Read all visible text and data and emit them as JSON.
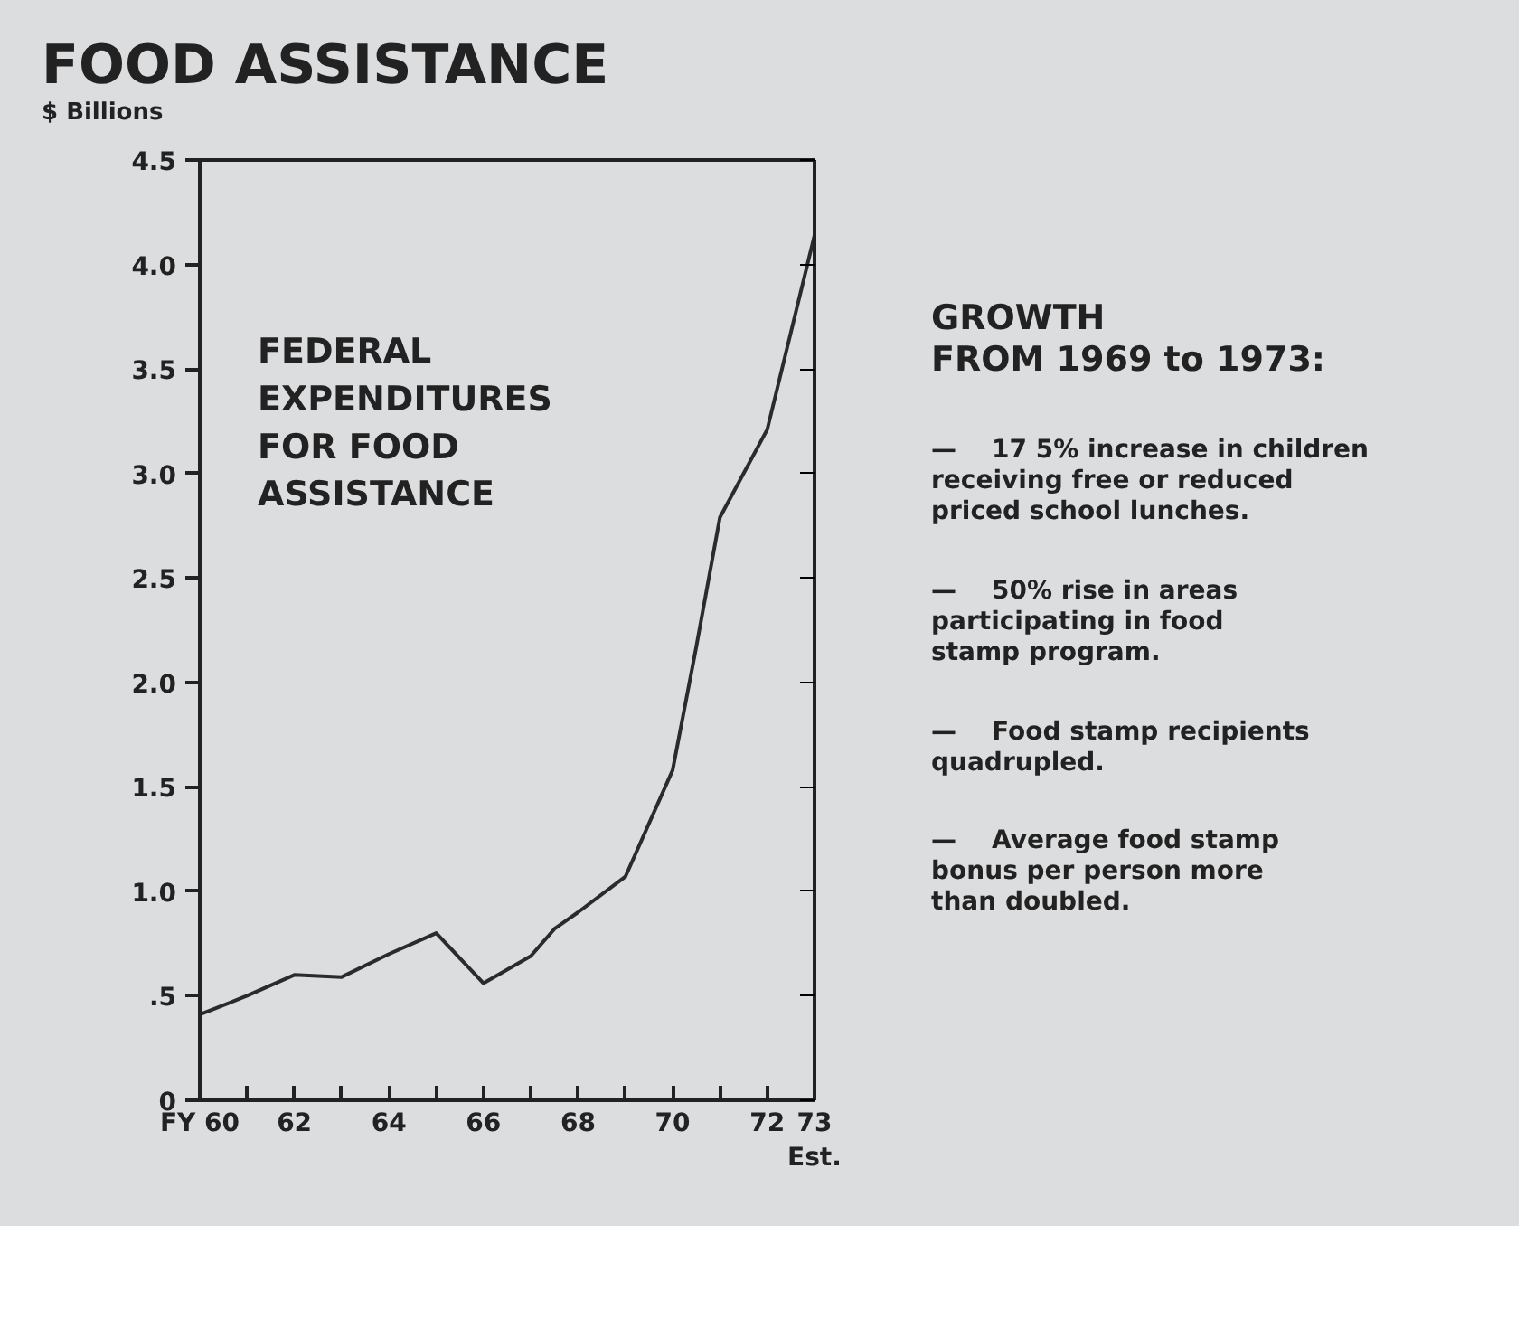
{
  "chart_data": {
    "type": "line",
    "title": "FOOD ASSISTANCE",
    "ylabel": "$ Billions",
    "x": [
      60,
      61,
      62,
      63,
      64,
      65,
      66,
      67,
      67.5,
      68,
      69,
      70,
      70.5,
      71,
      72,
      73
    ],
    "series": [
      {
        "color": "#2b2b2b",
        "values": [
          0.41,
          0.5,
          0.6,
          0.59,
          0.7,
          0.8,
          0.56,
          0.69,
          0.82,
          0.9,
          1.07,
          1.58,
          2.17,
          2.79,
          3.21,
          4.14
        ]
      }
    ],
    "xlim": [
      60,
      73
    ],
    "ylim": [
      0,
      4.5
    ],
    "xticks": [
      {
        "value": 60,
        "label": "FY 60"
      },
      {
        "value": 61,
        "label": null
      },
      62,
      {
        "value": 63,
        "label": null
      },
      64,
      {
        "value": 65,
        "label": null
      },
      66,
      {
        "value": 67,
        "label": null
      },
      68,
      {
        "value": 69,
        "label": null
      },
      70,
      {
        "value": 71,
        "label": null
      },
      72,
      {
        "value": 73,
        "label": "73\nEst."
      }
    ],
    "yticks": [
      0,
      {
        "value": 0.5,
        "label": ".5"
      },
      {
        "value": 1.0,
        "label": "1.0"
      },
      1.5,
      {
        "value": 2.0,
        "label": "2.0"
      },
      2.5,
      {
        "value": 3.0,
        "label": "3.0"
      },
      3.5,
      {
        "value": 4.0,
        "label": "4.0"
      },
      4.5
    ],
    "grid": false,
    "marker": "none",
    "line_style": "solid",
    "annotations": [
      "FEDERAL\nEXPENDITURES\nFOR FOOD\nASSISTANCE",
      "GROWTH\nFROM 1969 to 1973:",
      "—    17 5% increase in children\nreceiving free or reduced\npriced school lunches.",
      "—    50% rise in areas\nparticipating in food\nstamp program.",
      "—    Food stamp recipients\nquadrupled.",
      "—    Average food stamp\nbonus per person more\nthan doubled."
    ]
  }
}
